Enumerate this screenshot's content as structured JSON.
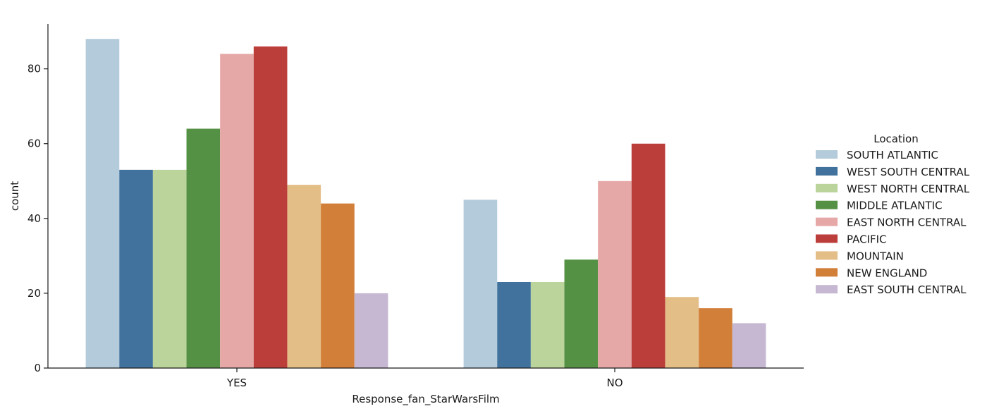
{
  "chart_data": {
    "type": "bar",
    "xlabel": "Response_fan_StarWarsFilm",
    "ylabel": "count",
    "categories": [
      "YES",
      "NO"
    ],
    "ylim": [
      0,
      92
    ],
    "yticks": [
      0,
      20,
      40,
      60,
      80
    ],
    "grid": false,
    "legend": {
      "title": "Location",
      "placement": "right"
    },
    "series": [
      {
        "name": "SOUTH ATLANTIC",
        "color": "#b3cbdb",
        "values": [
          88,
          45
        ]
      },
      {
        "name": "WEST SOUTH CENTRAL",
        "color": "#41729e",
        "values": [
          53,
          23
        ]
      },
      {
        "name": "WEST NORTH CENTRAL",
        "color": "#bad49c",
        "values": [
          53,
          23
        ]
      },
      {
        "name": "MIDDLE ATLANTIC",
        "color": "#559145",
        "values": [
          64,
          29
        ]
      },
      {
        "name": "EAST NORTH CENTRAL",
        "color": "#e5a8a7",
        "values": [
          84,
          50
        ]
      },
      {
        "name": "PACIFIC",
        "color": "#bc3e3b",
        "values": [
          86,
          60
        ]
      },
      {
        "name": "MOUNTAIN",
        "color": "#e4be87",
        "values": [
          49,
          19
        ]
      },
      {
        "name": "NEW ENGLAND",
        "color": "#d27f39",
        "values": [
          44,
          16
        ]
      },
      {
        "name": "EAST SOUTH CENTRAL",
        "color": "#c6b8d2",
        "values": [
          20,
          12
        ]
      }
    ]
  }
}
